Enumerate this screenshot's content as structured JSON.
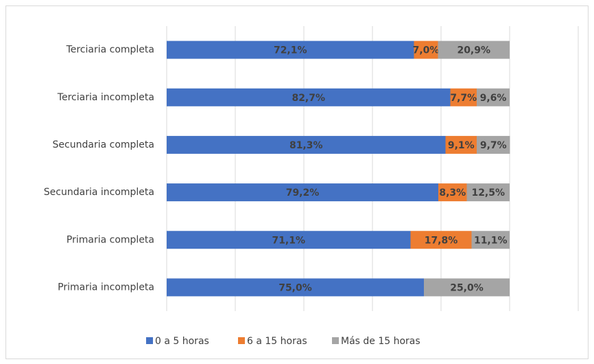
{
  "chart_data": {
    "type": "stacked_barh",
    "categories": [
      "Terciaria completa",
      "Terciaria incompleta",
      "Secundaria completa",
      "Secundaria incompleta",
      "Primaria completa",
      "Primaria incompleta"
    ],
    "series": [
      {
        "name": "0 a 5 horas",
        "color": "#4472c4",
        "values": [
          72.1,
          82.7,
          81.3,
          79.2,
          71.1,
          75.0
        ],
        "value_labels": [
          "72,1%",
          "82,7%",
          "81,3%",
          "79,2%",
          "71,1%",
          "75,0%"
        ]
      },
      {
        "name": "6 a 15 horas",
        "color": "#ed7d31",
        "values": [
          7.0,
          7.7,
          9.1,
          8.3,
          17.8,
          null
        ],
        "value_labels": [
          "7,0%",
          "7,7%",
          "9,1%",
          "8,3%",
          "17,8%",
          null
        ]
      },
      {
        "name": "Más de 15 horas",
        "color": "#a5a5a5",
        "values": [
          20.9,
          9.6,
          9.7,
          12.5,
          11.1,
          25.0
        ],
        "value_labels": [
          "20,9%",
          "9,6%",
          "9,7%",
          "12,5%",
          "11,1%",
          "25,0%"
        ]
      }
    ],
    "xlim": [
      0,
      120
    ],
    "xticks": [
      0,
      20,
      40,
      60,
      80,
      100,
      120
    ],
    "grid": true,
    "legend": "bottom"
  }
}
